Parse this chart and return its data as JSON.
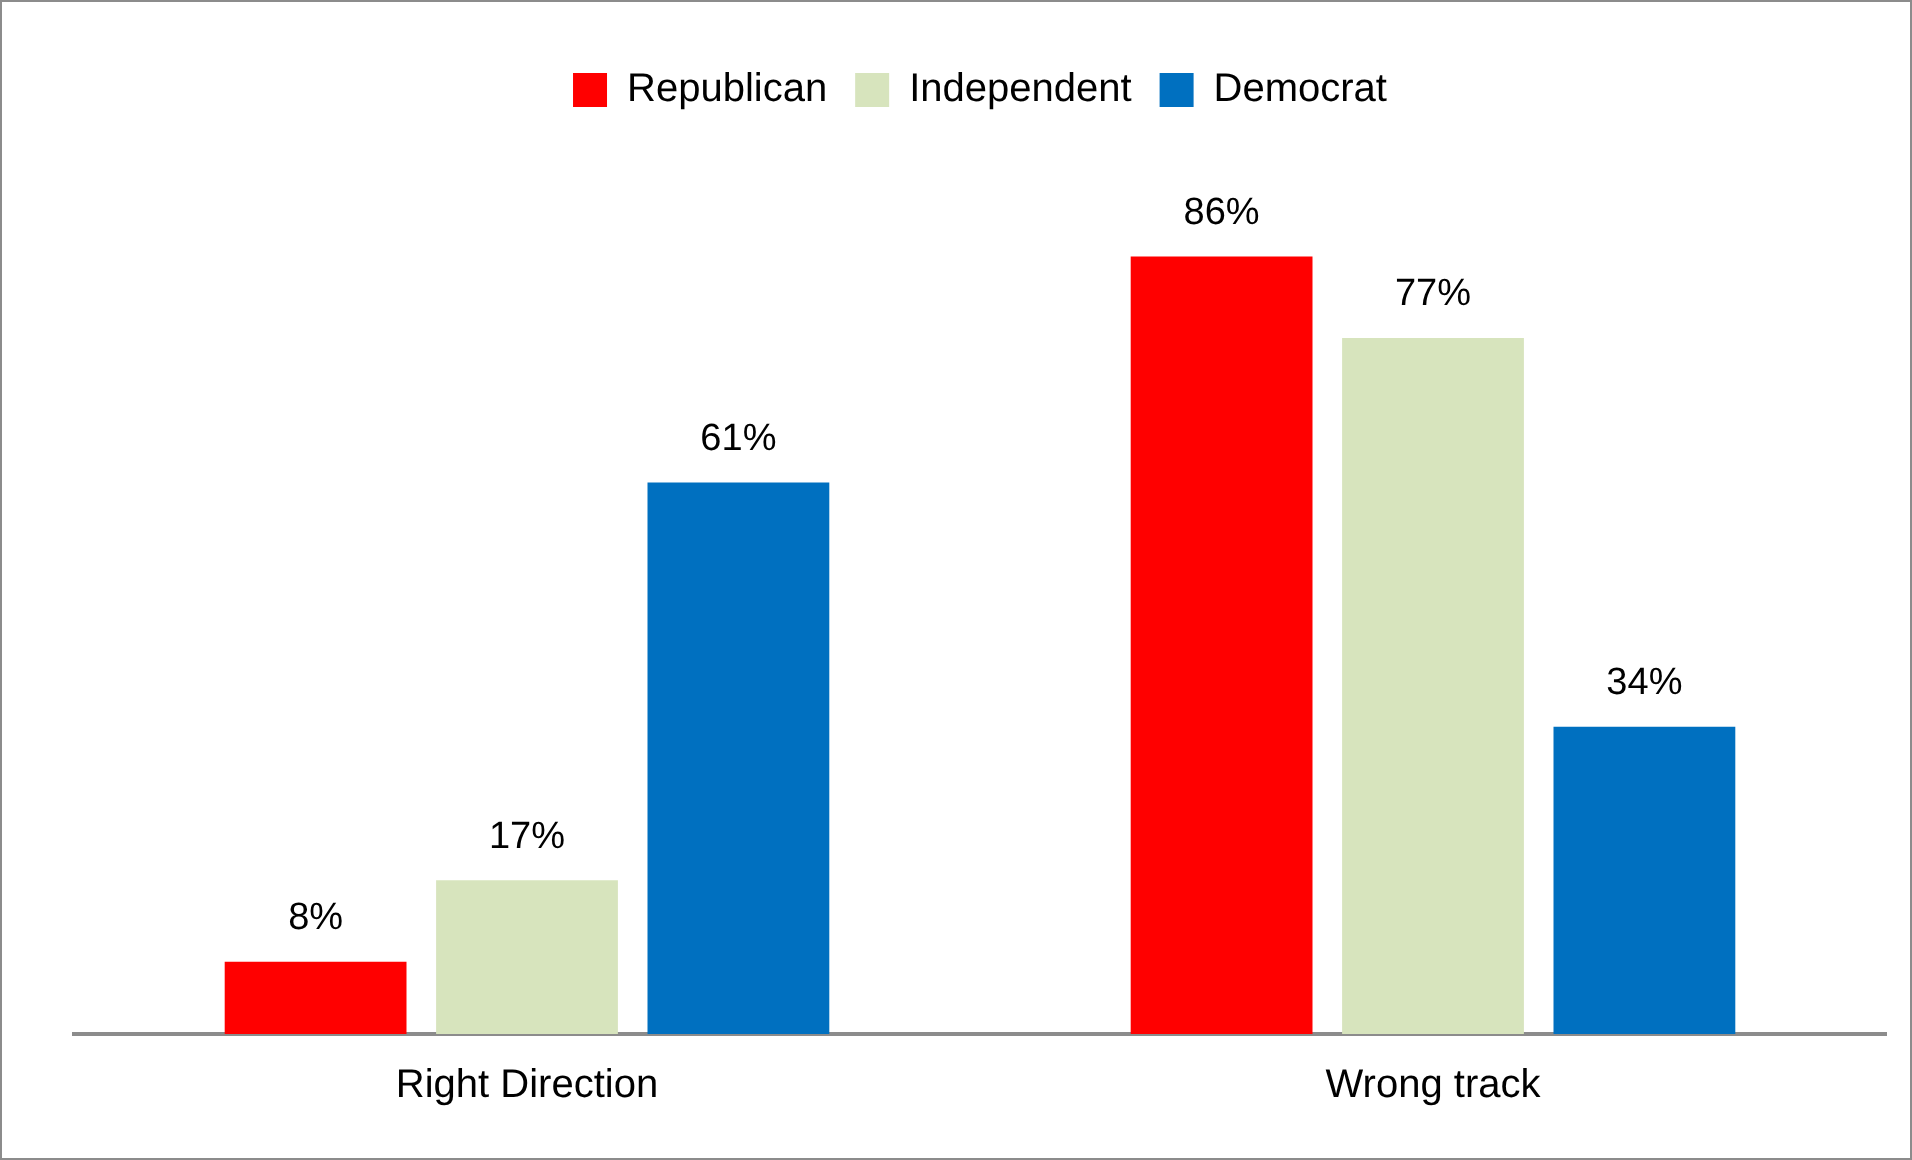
{
  "chart_data": {
    "type": "bar",
    "categories": [
      "Right Direction",
      "Wrong track"
    ],
    "series": [
      {
        "name": "Republican",
        "color": "#ff0000",
        "values": [
          8,
          86
        ],
        "value_labels": [
          "8%",
          "86%"
        ]
      },
      {
        "name": "Independent",
        "color": "#d7e4bd",
        "values": [
          17,
          77
        ],
        "value_labels": [
          "17%",
          "77%"
        ]
      },
      {
        "name": "Democrat",
        "color": "#0070c0",
        "values": [
          61,
          34
        ],
        "value_labels": [
          "61%",
          "34%"
        ]
      }
    ],
    "legend": "top",
    "grid": false,
    "tick_labels": "x"
  }
}
